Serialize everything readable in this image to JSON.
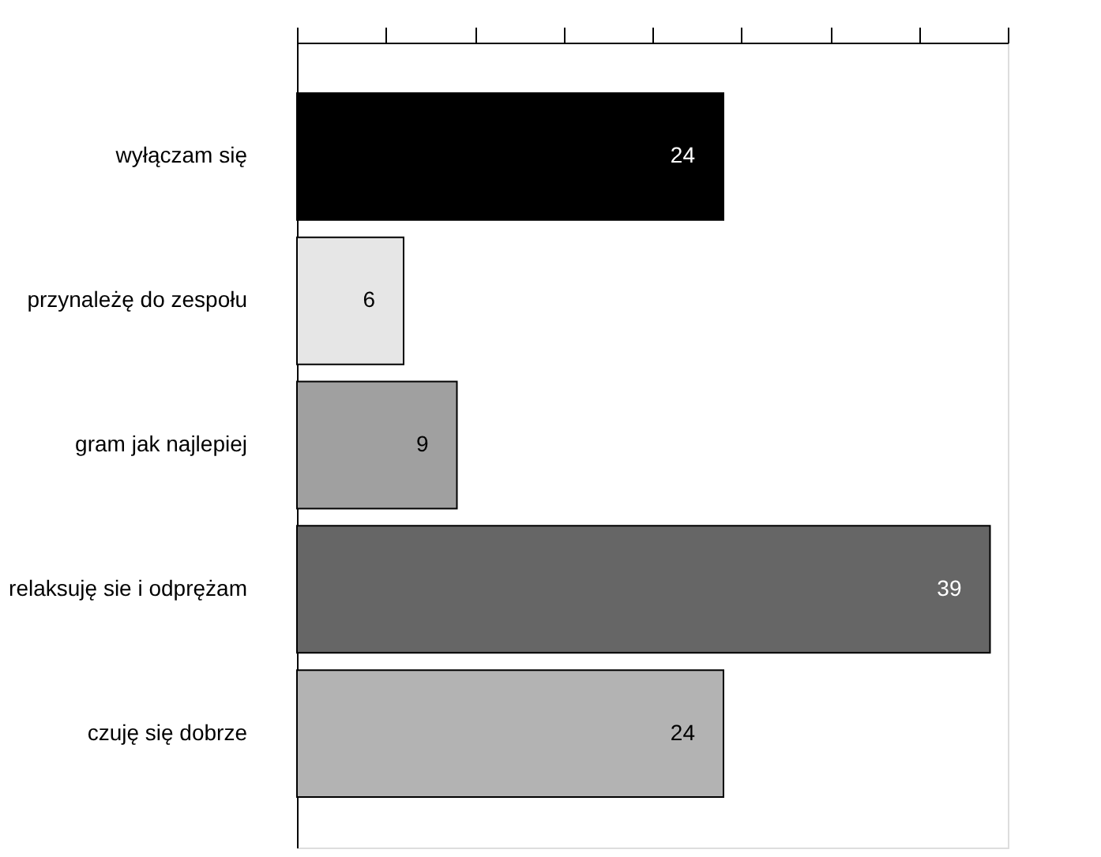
{
  "chart_data": {
    "type": "bar",
    "orientation": "horizontal",
    "categories": [
      "wyłączam się",
      "przynależę do zespołu",
      "gram jak najlepiej",
      "relaksuję sie i odprężam",
      "czuję się dobrze"
    ],
    "values": [
      24,
      6,
      9,
      39,
      24
    ],
    "colors": [
      "#000000",
      "#e6e6e6",
      "#a0a0a0",
      "#666666",
      "#b3b3b3"
    ],
    "xlim": [
      0,
      40
    ],
    "xticks": [
      {
        "value": 0,
        "label": null
      },
      {
        "value": 5,
        "label": null
      },
      {
        "value": 10,
        "label": null
      },
      {
        "value": 15,
        "label": null
      },
      {
        "value": 20,
        "label": null
      },
      {
        "value": 25,
        "label": null
      },
      {
        "value": 30,
        "label": null
      },
      {
        "value": 35,
        "label": null
      },
      {
        "value": 40,
        "label": null
      }
    ],
    "data_labels": true,
    "grid": false
  }
}
